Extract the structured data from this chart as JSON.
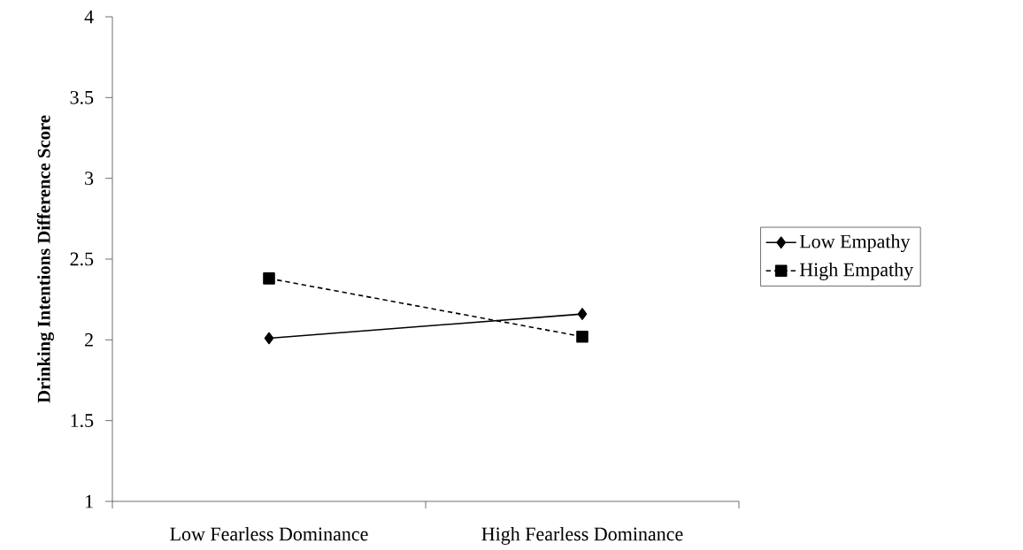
{
  "chart_data": {
    "type": "line",
    "ylabel": "Drinking Intentions Difference Score",
    "categories": [
      "Low Fearless Dominance",
      "High Fearless Dominance"
    ],
    "series": [
      {
        "name": "Low Empathy",
        "color": "#000000",
        "values": [
          2.01,
          2.16
        ],
        "marker": "diamond",
        "line_style": "solid"
      },
      {
        "name": "High Empathy",
        "color": "#000000",
        "values": [
          2.38,
          2.02
        ],
        "marker": "square",
        "line_style": "dashed"
      }
    ],
    "ylim": [
      1,
      4
    ],
    "yticks": [
      1,
      1.5,
      2,
      2.5,
      3,
      3.5,
      4
    ],
    "grid": false,
    "legend": "right"
  }
}
